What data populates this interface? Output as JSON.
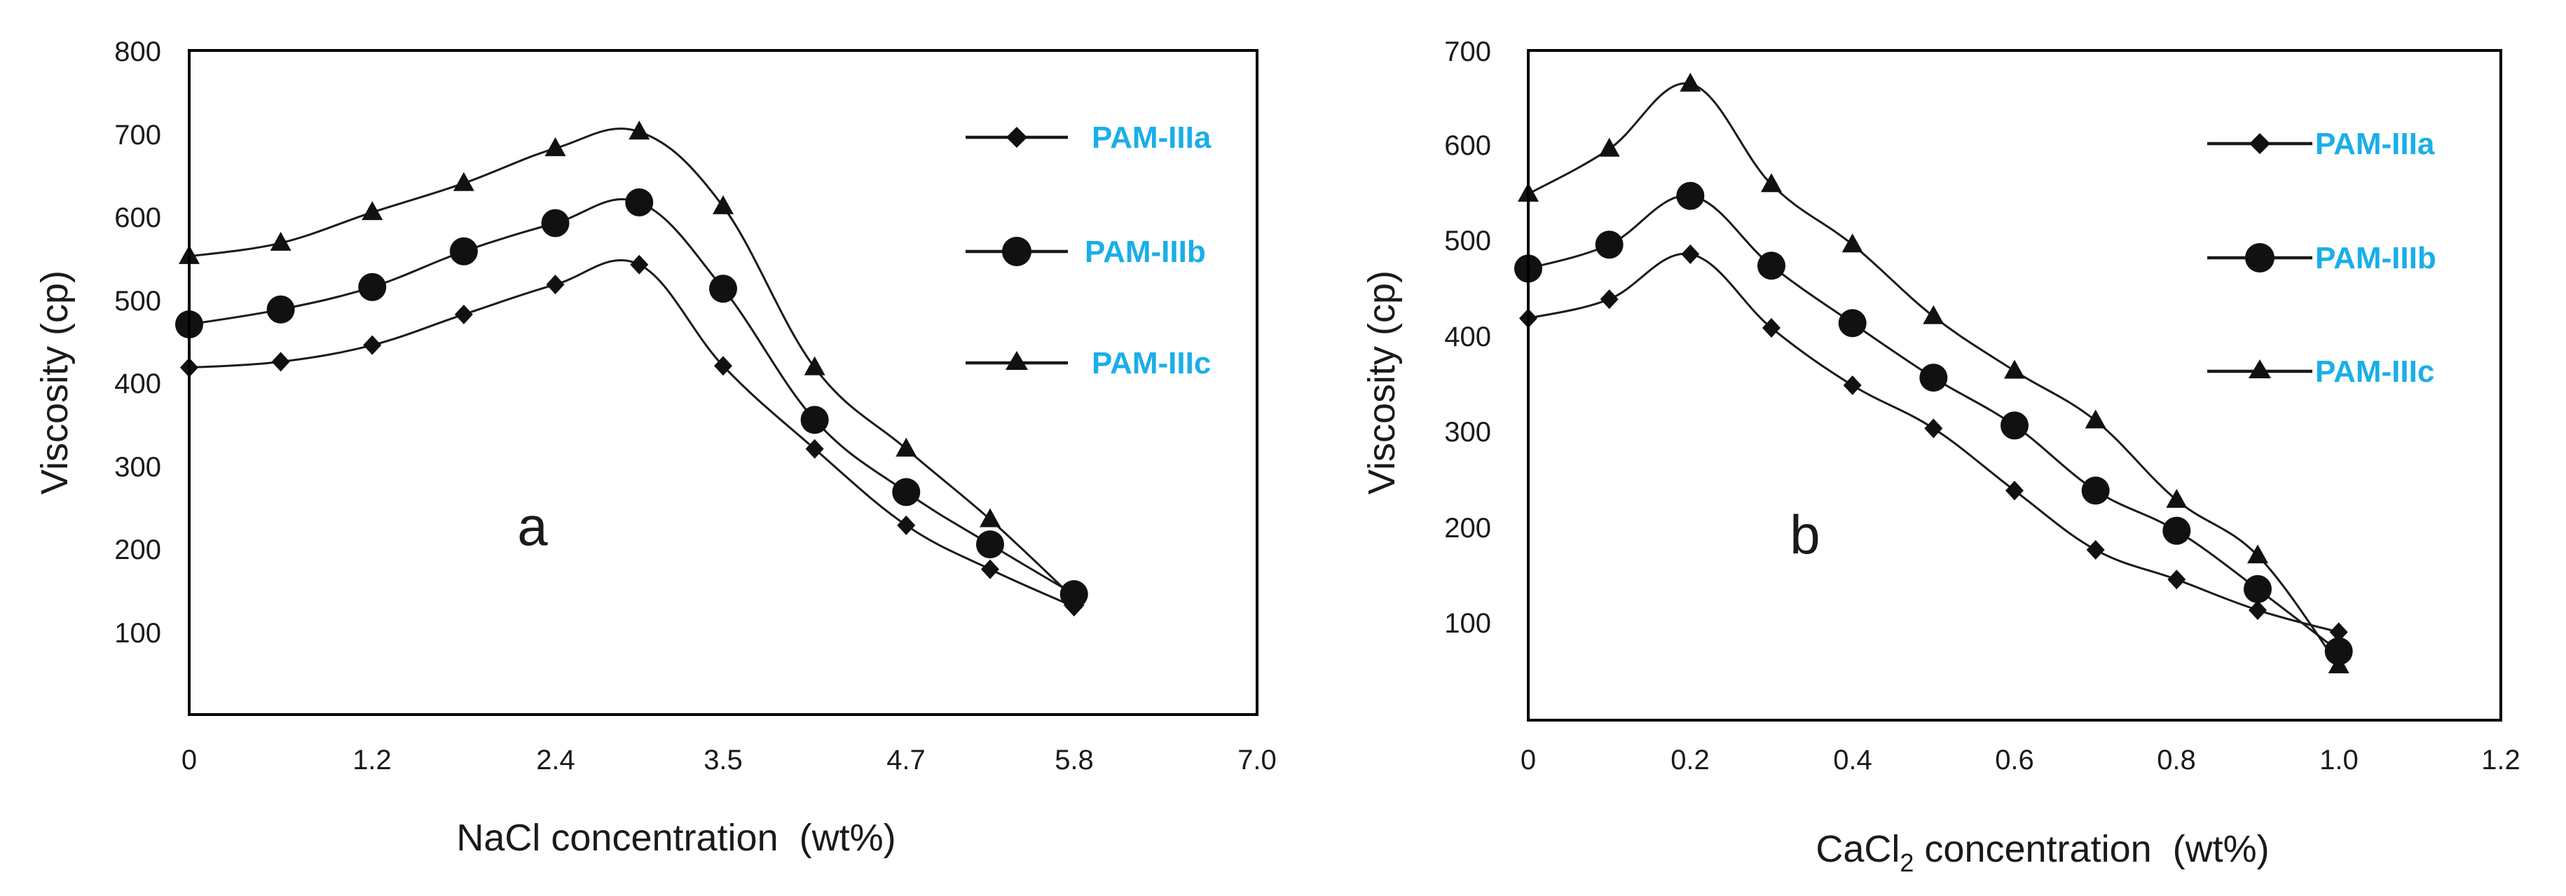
{
  "figure": {
    "panels": [
      "a",
      "b"
    ]
  },
  "chart_data": [
    {
      "type": "line",
      "panel_label": "a",
      "xlabel": "NaCl concentration  (wt%)",
      "ylabel": "Viscosity (cp)",
      "xlim": [
        0,
        7.0
      ],
      "ylim": [
        0,
        800
      ],
      "xticks": [
        0,
        1.2,
        2.4,
        3.5,
        4.7,
        5.8,
        7.0
      ],
      "xtick_labels": [
        "0",
        "1.2",
        "2.4",
        "3.5",
        "4.7",
        "5.8",
        "7.0"
      ],
      "yticks": [
        100,
        200,
        300,
        400,
        500,
        600,
        700,
        800
      ],
      "ytick_labels": [
        "100",
        "200",
        "300",
        "400",
        "500",
        "600",
        "700",
        "800"
      ],
      "grid": false,
      "legend_position": "right",
      "series": [
        {
          "name": "PAM-IIIa",
          "marker": "diamond",
          "x": [
            0,
            0.6,
            1.2,
            1.8,
            2.4,
            2.95,
            3.5,
            4.1,
            4.7,
            5.25,
            5.8
          ],
          "y": [
            418,
            425,
            445,
            482,
            518,
            542,
            420,
            320,
            228,
            175,
            130
          ]
        },
        {
          "name": "PAM-IIIb",
          "marker": "circle",
          "x": [
            0,
            0.6,
            1.2,
            1.8,
            2.4,
            2.95,
            3.5,
            4.1,
            4.7,
            5.25,
            5.8
          ],
          "y": [
            470,
            488,
            515,
            558,
            592,
            617,
            513,
            355,
            268,
            205,
            145
          ]
        },
        {
          "name": "PAM-IIIc",
          "marker": "triangle",
          "x": [
            0,
            0.6,
            1.2,
            1.8,
            2.4,
            2.95,
            3.5,
            4.1,
            4.7,
            5.25,
            5.8
          ],
          "y": [
            552,
            568,
            605,
            640,
            682,
            702,
            612,
            418,
            320,
            235,
            140
          ]
        }
      ]
    },
    {
      "type": "line",
      "panel_label": "b",
      "xlabel_main": "CaCl",
      "xlabel_sub": "2",
      "xlabel_rest": " concentration  (wt%)",
      "ylabel": "Viscosity (cp)",
      "xlim": [
        0,
        1.2
      ],
      "ylim": [
        0,
        700
      ],
      "xticks": [
        0,
        0.2,
        0.4,
        0.6,
        0.8,
        1.0,
        1.2
      ],
      "xtick_labels": [
        "0",
        "0.2",
        "0.4",
        "0.6",
        "0.8",
        "1.0",
        "1.2"
      ],
      "yticks": [
        100,
        200,
        300,
        400,
        500,
        600,
        700
      ],
      "ytick_labels": [
        "100",
        "200",
        "300",
        "400",
        "500",
        "600",
        "700"
      ],
      "grid": false,
      "legend_position": "right",
      "series": [
        {
          "name": "PAM-IIIa",
          "marker": "diamond",
          "x": [
            0,
            0.1,
            0.2,
            0.3,
            0.4,
            0.5,
            0.6,
            0.7,
            0.8,
            0.9,
            1.0
          ],
          "y": [
            420,
            440,
            487,
            410,
            350,
            305,
            240,
            178,
            147,
            115,
            92
          ]
        },
        {
          "name": "PAM-IIIb",
          "marker": "circle",
          "x": [
            0,
            0.1,
            0.2,
            0.3,
            0.4,
            0.5,
            0.6,
            0.7,
            0.8,
            0.9,
            1.0
          ],
          "y": [
            472,
            497,
            548,
            475,
            415,
            358,
            308,
            240,
            198,
            137,
            72
          ]
        },
        {
          "name": "PAM-IIIc",
          "marker": "triangle",
          "x": [
            0,
            0.1,
            0.2,
            0.3,
            0.4,
            0.5,
            0.6,
            0.7,
            0.8,
            0.9,
            1.0
          ],
          "y": [
            550,
            597,
            665,
            560,
            497,
            422,
            365,
            313,
            230,
            172,
            57
          ]
        }
      ]
    }
  ],
  "colors": {
    "legend_text": "#1aaee9",
    "line": "#1a1a1a",
    "frame": "#000000",
    "text": "#1a1a1a"
  }
}
